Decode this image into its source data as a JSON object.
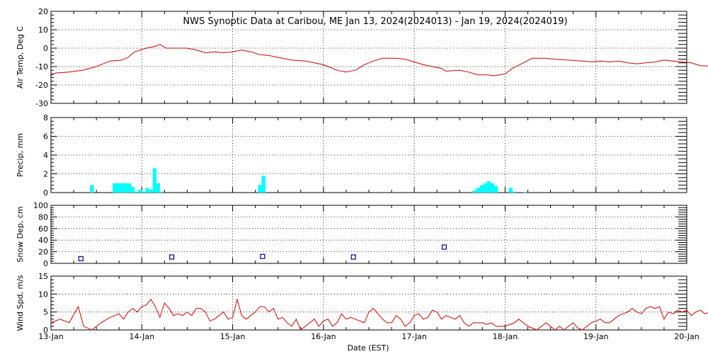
{
  "chart_data": {
    "type": "multi-panel",
    "title": "NWS Synoptic Data at Caribou, ME   Jan 13, 2024(2024013) - Jan 19, 2024(2024019)",
    "xlabel": "Date (EST)",
    "x_range_days": [
      0,
      7
    ],
    "x_ticks": [
      "13-Jan",
      "14-Jan",
      "15-Jan",
      "16-Jan",
      "17-Jan",
      "18-Jan",
      "19-Jan",
      "20-Jan"
    ],
    "grid": true,
    "panels": [
      {
        "type": "line",
        "ylabel": "Air Temp, Deg C",
        "ylim": [
          -30,
          20
        ],
        "yticks": [
          -30,
          -20,
          -10,
          0,
          10,
          20
        ],
        "color": "#cc0000",
        "points": [
          [
            0,
            -15
          ],
          [
            0.05,
            -13.5
          ],
          [
            0.2,
            -13
          ],
          [
            0.35,
            -12
          ],
          [
            0.5,
            -10
          ],
          [
            0.65,
            -7
          ],
          [
            0.78,
            -6.5
          ],
          [
            0.85,
            -5
          ],
          [
            0.92,
            -2
          ],
          [
            1.05,
            0
          ],
          [
            1.15,
            1
          ],
          [
            1.2,
            2
          ],
          [
            1.27,
            0
          ],
          [
            1.4,
            0
          ],
          [
            1.5,
            0
          ],
          [
            1.6,
            -1
          ],
          [
            1.7,
            -2.5
          ],
          [
            1.8,
            -2
          ],
          [
            1.9,
            -2.5
          ],
          [
            2.0,
            -2
          ],
          [
            2.1,
            -1
          ],
          [
            2.2,
            -2
          ],
          [
            2.3,
            -3.5
          ],
          [
            2.4,
            -4
          ],
          [
            2.5,
            -5
          ],
          [
            2.65,
            -6.5
          ],
          [
            2.8,
            -7
          ],
          [
            2.9,
            -8
          ],
          [
            3.0,
            -9
          ],
          [
            3.05,
            -10
          ],
          [
            3.15,
            -12
          ],
          [
            3.25,
            -13
          ],
          [
            3.35,
            -12
          ],
          [
            3.45,
            -9
          ],
          [
            3.55,
            -7
          ],
          [
            3.65,
            -5.5
          ],
          [
            3.8,
            -5.5
          ],
          [
            3.9,
            -6
          ],
          [
            4.0,
            -7.5
          ],
          [
            4.1,
            -9
          ],
          [
            4.2,
            -10
          ],
          [
            4.3,
            -11
          ],
          [
            4.35,
            -12.5
          ],
          [
            4.5,
            -12
          ],
          [
            4.6,
            -13
          ],
          [
            4.7,
            -14.5
          ],
          [
            4.8,
            -14.5
          ],
          [
            4.88,
            -15
          ],
          [
            5.0,
            -14
          ],
          [
            5.08,
            -11
          ],
          [
            5.2,
            -8
          ],
          [
            5.3,
            -5.5
          ],
          [
            5.45,
            -5.5
          ],
          [
            5.55,
            -6
          ],
          [
            5.7,
            -6.5
          ],
          [
            5.85,
            -7
          ],
          [
            5.95,
            -7.5
          ],
          [
            6.05,
            -7
          ],
          [
            6.15,
            -7.5
          ],
          [
            6.25,
            -7
          ],
          [
            6.35,
            -8
          ],
          [
            6.45,
            -8.5
          ],
          [
            6.55,
            -8
          ],
          [
            6.65,
            -7.5
          ],
          [
            6.75,
            -6.5
          ],
          [
            6.85,
            -7
          ],
          [
            6.95,
            -7.5
          ],
          [
            7.05,
            -8
          ],
          [
            7.15,
            -9.5
          ],
          [
            7.3,
            -10
          ],
          [
            7.45,
            -10.5
          ],
          [
            7.6,
            -11.5
          ],
          [
            7.7,
            -13
          ],
          [
            7.78,
            -15
          ]
        ]
      },
      {
        "type": "bar",
        "ylabel": "Precip, mm",
        "ylim": [
          0,
          8
        ],
        "yticks": [
          0,
          2,
          4,
          6,
          8
        ],
        "color": "#00ffff",
        "bar_width_days": 0.0417,
        "bars": [
          [
            0.43,
            0.8
          ],
          [
            0.68,
            1
          ],
          [
            0.72,
            1
          ],
          [
            0.76,
            1
          ],
          [
            0.8,
            1
          ],
          [
            0.84,
            1
          ],
          [
            0.88,
            0.6
          ],
          [
            0.92,
            0.1
          ],
          [
            0.96,
            0.3
          ],
          [
            1.0,
            0.1
          ],
          [
            1.04,
            0.5
          ],
          [
            1.08,
            0.3
          ],
          [
            1.12,
            2.6
          ],
          [
            1.16,
            1
          ],
          [
            1.2,
            0.1
          ],
          [
            2.28,
            0.8
          ],
          [
            2.32,
            1.8
          ],
          [
            4.64,
            0.2
          ],
          [
            4.68,
            0.5
          ],
          [
            4.72,
            0.8
          ],
          [
            4.76,
            1
          ],
          [
            4.8,
            1.2
          ],
          [
            4.84,
            1
          ],
          [
            4.88,
            0.7
          ],
          [
            5.04,
            0.5
          ],
          [
            5.08,
            0.1
          ],
          [
            5.2,
            0.05
          ]
        ]
      },
      {
        "type": "scatter",
        "ylabel": "Snow Dep, cm",
        "ylim": [
          0,
          100
        ],
        "yticks": [
          0,
          20,
          40,
          60,
          80,
          100
        ],
        "color": "#00008b",
        "points": [
          [
            0.33,
            8
          ],
          [
            1.33,
            11
          ],
          [
            2.33,
            12
          ],
          [
            3.33,
            11
          ],
          [
            4.33,
            28
          ]
        ]
      },
      {
        "type": "line",
        "ylabel": "Wind Spd, m/s",
        "ylim": [
          0,
          15
        ],
        "yticks": [
          0,
          5,
          10,
          15
        ],
        "color": "#cc0000",
        "points": [
          [
            0,
            2
          ],
          [
            0.1,
            3
          ],
          [
            0.2,
            2
          ],
          [
            0.3,
            6.5
          ],
          [
            0.36,
            1
          ],
          [
            0.45,
            0
          ],
          [
            0.55,
            2
          ],
          [
            0.65,
            3.5
          ],
          [
            0.75,
            4.5
          ],
          [
            0.8,
            3
          ],
          [
            0.85,
            5
          ],
          [
            0.9,
            6
          ],
          [
            0.95,
            5
          ],
          [
            1.0,
            6.5
          ],
          [
            1.05,
            7
          ],
          [
            1.1,
            8.5
          ],
          [
            1.15,
            6.5
          ],
          [
            1.2,
            3.5
          ],
          [
            1.25,
            7.5
          ],
          [
            1.3,
            6
          ],
          [
            1.35,
            4
          ],
          [
            1.4,
            4.5
          ],
          [
            1.45,
            4
          ],
          [
            1.5,
            5
          ],
          [
            1.55,
            4
          ],
          [
            1.6,
            6
          ],
          [
            1.65,
            6
          ],
          [
            1.7,
            5
          ],
          [
            1.75,
            2.5
          ],
          [
            1.8,
            3
          ],
          [
            1.85,
            4
          ],
          [
            1.9,
            5
          ],
          [
            1.95,
            3
          ],
          [
            2.0,
            3.5
          ],
          [
            2.05,
            8.5
          ],
          [
            2.1,
            4
          ],
          [
            2.15,
            3
          ],
          [
            2.2,
            4
          ],
          [
            2.25,
            5
          ],
          [
            2.3,
            6.5
          ],
          [
            2.35,
            6.5
          ],
          [
            2.4,
            5
          ],
          [
            2.45,
            6
          ],
          [
            2.5,
            3
          ],
          [
            2.55,
            3.5
          ],
          [
            2.6,
            2
          ],
          [
            2.65,
            1
          ],
          [
            2.7,
            3
          ],
          [
            2.75,
            0
          ],
          [
            2.8,
            1
          ],
          [
            2.85,
            2
          ],
          [
            2.9,
            3
          ],
          [
            2.95,
            1
          ],
          [
            3.0,
            2.5
          ],
          [
            3.05,
            3
          ],
          [
            3.1,
            1
          ],
          [
            3.15,
            2
          ],
          [
            3.2,
            4.5
          ],
          [
            3.25,
            3
          ],
          [
            3.3,
            3.5
          ],
          [
            3.35,
            3
          ],
          [
            3.4,
            2.5
          ],
          [
            3.45,
            2
          ],
          [
            3.5,
            5
          ],
          [
            3.55,
            6
          ],
          [
            3.6,
            4.5
          ],
          [
            3.65,
            3
          ],
          [
            3.7,
            2
          ],
          [
            3.75,
            2
          ],
          [
            3.8,
            4
          ],
          [
            3.85,
            3
          ],
          [
            3.9,
            1
          ],
          [
            3.95,
            2
          ],
          [
            4.0,
            4
          ],
          [
            4.05,
            4.5
          ],
          [
            4.1,
            3
          ],
          [
            4.15,
            3.5
          ],
          [
            4.2,
            5.5
          ],
          [
            4.25,
            5
          ],
          [
            4.3,
            3
          ],
          [
            4.35,
            4
          ],
          [
            4.4,
            3.5
          ],
          [
            4.45,
            3
          ],
          [
            4.5,
            4
          ],
          [
            4.55,
            2
          ],
          [
            4.6,
            1
          ],
          [
            4.65,
            2
          ],
          [
            4.7,
            2
          ],
          [
            4.75,
            2
          ],
          [
            4.8,
            1.5
          ],
          [
            4.85,
            2
          ],
          [
            4.9,
            1
          ],
          [
            4.95,
            1
          ],
          [
            5.0,
            1
          ],
          [
            5.05,
            1.5
          ],
          [
            5.1,
            2
          ],
          [
            5.15,
            3
          ],
          [
            5.2,
            2
          ],
          [
            5.25,
            1
          ],
          [
            5.3,
            0.5
          ],
          [
            5.35,
            0
          ],
          [
            5.4,
            1
          ],
          [
            5.45,
            2
          ],
          [
            5.5,
            1
          ],
          [
            5.55,
            0
          ],
          [
            5.6,
            1
          ],
          [
            5.65,
            0
          ],
          [
            5.7,
            1
          ],
          [
            5.75,
            2
          ],
          [
            5.8,
            0.5
          ],
          [
            5.85,
            0
          ],
          [
            5.9,
            1
          ],
          [
            5.95,
            2
          ],
          [
            6.0,
            2.5
          ],
          [
            6.05,
            3
          ],
          [
            6.1,
            2
          ],
          [
            6.15,
            2
          ],
          [
            6.2,
            3
          ],
          [
            6.25,
            4
          ],
          [
            6.3,
            4.5
          ],
          [
            6.35,
            5
          ],
          [
            6.4,
            6
          ],
          [
            6.45,
            5
          ],
          [
            6.5,
            4.5
          ],
          [
            6.55,
            6
          ],
          [
            6.6,
            6.5
          ],
          [
            6.65,
            6
          ],
          [
            6.7,
            6.5
          ],
          [
            6.75,
            3
          ],
          [
            6.8,
            5
          ],
          [
            6.85,
            4.5
          ],
          [
            6.9,
            5.5
          ],
          [
            6.95,
            5
          ],
          [
            7.0,
            5.5
          ],
          [
            7.05,
            4
          ],
          [
            7.1,
            5
          ],
          [
            7.15,
            5.5
          ],
          [
            7.2,
            4.5
          ],
          [
            7.25,
            5
          ],
          [
            7.3,
            5.5
          ],
          [
            7.35,
            5
          ],
          [
            7.4,
            4.5
          ],
          [
            7.45,
            3.5
          ],
          [
            7.5,
            2
          ],
          [
            7.55,
            1.5
          ],
          [
            7.6,
            2
          ],
          [
            7.65,
            2.5
          ],
          [
            7.7,
            3
          ],
          [
            7.75,
            4.5
          ],
          [
            7.8,
            4
          ],
          [
            7.85,
            5
          ],
          [
            7.9,
            4.5
          ],
          [
            7.95,
            5
          ],
          [
            8.0,
            4.5
          ],
          [
            8.05,
            5.5
          ],
          [
            8.1,
            3
          ],
          [
            8.15,
            4.5
          ],
          [
            8.2,
            4
          ],
          [
            8.25,
            4
          ],
          [
            8.3,
            4.5
          ],
          [
            8.35,
            5
          ],
          [
            8.4,
            4.5
          ],
          [
            8.45,
            4
          ],
          [
            8.5,
            5
          ]
        ]
      }
    ]
  }
}
